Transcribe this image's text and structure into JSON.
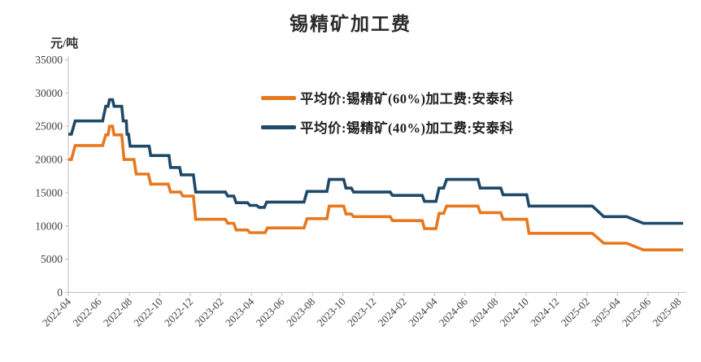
{
  "title": "锡精矿加工费",
  "y_unit": "元/吨",
  "legend": [
    {
      "label": "平均价:锡精矿(60%)加工费:安泰科",
      "color": "#E8781E"
    },
    {
      "label": "平均价:锡精矿(40%)加工费:安泰科",
      "color": "#1F4968"
    }
  ],
  "colors": {
    "series_60pct": "#E8781E",
    "series_40pct": "#1F4968",
    "axis": "#BFBFBF",
    "axis_text": "#404040",
    "title_text": "#2B2B2B"
  },
  "chart_data": {
    "type": "line",
    "title": "锡精矿加工费",
    "ylabel": "元/吨",
    "xlabel": "",
    "grid": false,
    "legend_position": "upper center-right",
    "ylim": [
      0,
      35000
    ],
    "y_ticks": [
      0,
      5000,
      10000,
      15000,
      20000,
      25000,
      30000,
      35000
    ],
    "x_tick_labels": [
      "2022-04",
      "2022-06",
      "2022-08",
      "2022-10",
      "2022-12",
      "2023-02",
      "2023-04",
      "2023-06",
      "2023-08",
      "2023-10",
      "2023-12",
      "2024-02",
      "2024-04",
      "2024-06",
      "2024-08",
      "2024-10",
      "2024-12",
      "2025-02",
      "2025-04",
      "2025-06",
      "2025-08"
    ],
    "x_months_per_tick": 2,
    "x_month_range": [
      0,
      40.3
    ],
    "series": [
      {
        "name": "平均价:锡精矿(60%)加工费:安泰科",
        "color": "#E8781E",
        "points": [
          [
            0,
            20000
          ],
          [
            0.2,
            20000
          ],
          [
            0.45,
            22100
          ],
          [
            2.25,
            22100
          ],
          [
            2.45,
            23700
          ],
          [
            2.6,
            23700
          ],
          [
            2.7,
            25000
          ],
          [
            2.9,
            25000
          ],
          [
            3.0,
            23700
          ],
          [
            3.5,
            23700
          ],
          [
            3.65,
            20000
          ],
          [
            4.3,
            20000
          ],
          [
            4.45,
            17800
          ],
          [
            5.25,
            17800
          ],
          [
            5.4,
            16300
          ],
          [
            6.55,
            16300
          ],
          [
            6.7,
            15100
          ],
          [
            7.35,
            15100
          ],
          [
            7.5,
            14500
          ],
          [
            8.2,
            14500
          ],
          [
            8.35,
            11000
          ],
          [
            10.3,
            11000
          ],
          [
            10.45,
            10400
          ],
          [
            10.85,
            10400
          ],
          [
            11.0,
            9400
          ],
          [
            11.75,
            9400
          ],
          [
            11.9,
            9000
          ],
          [
            12.9,
            9000
          ],
          [
            13.05,
            9700
          ],
          [
            15.45,
            9700
          ],
          [
            15.65,
            11100
          ],
          [
            16.95,
            11100
          ],
          [
            17.1,
            13000
          ],
          [
            18.05,
            13000
          ],
          [
            18.2,
            11800
          ],
          [
            18.55,
            11800
          ],
          [
            18.7,
            11400
          ],
          [
            21.1,
            11400
          ],
          [
            21.25,
            10800
          ],
          [
            23.2,
            10800
          ],
          [
            23.35,
            9600
          ],
          [
            24.1,
            9600
          ],
          [
            24.3,
            11900
          ],
          [
            24.6,
            11900
          ],
          [
            24.8,
            13000
          ],
          [
            26.85,
            13000
          ],
          [
            27.0,
            12000
          ],
          [
            28.35,
            12000
          ],
          [
            28.5,
            11000
          ],
          [
            30.05,
            11000
          ],
          [
            30.2,
            8900
          ],
          [
            34.35,
            8900
          ],
          [
            35.1,
            7400
          ],
          [
            36.6,
            7400
          ],
          [
            37.7,
            6400
          ],
          [
            40.3,
            6400
          ]
        ]
      },
      {
        "name": "平均价:锡精矿(40%)加工费:安泰科",
        "color": "#1F4968",
        "points": [
          [
            0,
            23800
          ],
          [
            0.2,
            23800
          ],
          [
            0.45,
            25800
          ],
          [
            2.25,
            25800
          ],
          [
            2.45,
            28000
          ],
          [
            2.6,
            28000
          ],
          [
            2.7,
            29000
          ],
          [
            2.9,
            29000
          ],
          [
            3.0,
            28000
          ],
          [
            3.5,
            28000
          ],
          [
            3.6,
            25800
          ],
          [
            3.8,
            25800
          ],
          [
            3.85,
            23800
          ],
          [
            3.95,
            23800
          ],
          [
            4.05,
            22000
          ],
          [
            5.3,
            22000
          ],
          [
            5.4,
            20600
          ],
          [
            6.6,
            20600
          ],
          [
            6.7,
            18800
          ],
          [
            7.3,
            18800
          ],
          [
            7.4,
            17700
          ],
          [
            8.2,
            17700
          ],
          [
            8.35,
            15100
          ],
          [
            10.3,
            15100
          ],
          [
            10.45,
            14500
          ],
          [
            10.85,
            14500
          ],
          [
            11.0,
            13500
          ],
          [
            11.75,
            13500
          ],
          [
            11.9,
            13100
          ],
          [
            12.35,
            13100
          ],
          [
            12.5,
            12800
          ],
          [
            12.85,
            12800
          ],
          [
            13.0,
            13600
          ],
          [
            15.45,
            13600
          ],
          [
            15.65,
            15200
          ],
          [
            16.95,
            15200
          ],
          [
            17.1,
            17000
          ],
          [
            18.05,
            17000
          ],
          [
            18.2,
            15700
          ],
          [
            18.55,
            15700
          ],
          [
            18.7,
            15100
          ],
          [
            21.1,
            15100
          ],
          [
            21.25,
            14600
          ],
          [
            23.2,
            14600
          ],
          [
            23.35,
            13700
          ],
          [
            24.1,
            13700
          ],
          [
            24.3,
            15700
          ],
          [
            24.6,
            15700
          ],
          [
            24.8,
            17000
          ],
          [
            26.85,
            17000
          ],
          [
            27.0,
            15700
          ],
          [
            28.35,
            15700
          ],
          [
            28.5,
            14700
          ],
          [
            30.05,
            14700
          ],
          [
            30.2,
            13000
          ],
          [
            34.35,
            13000
          ],
          [
            35.1,
            11400
          ],
          [
            36.6,
            11400
          ],
          [
            37.7,
            10400
          ],
          [
            40.3,
            10400
          ]
        ]
      }
    ]
  }
}
